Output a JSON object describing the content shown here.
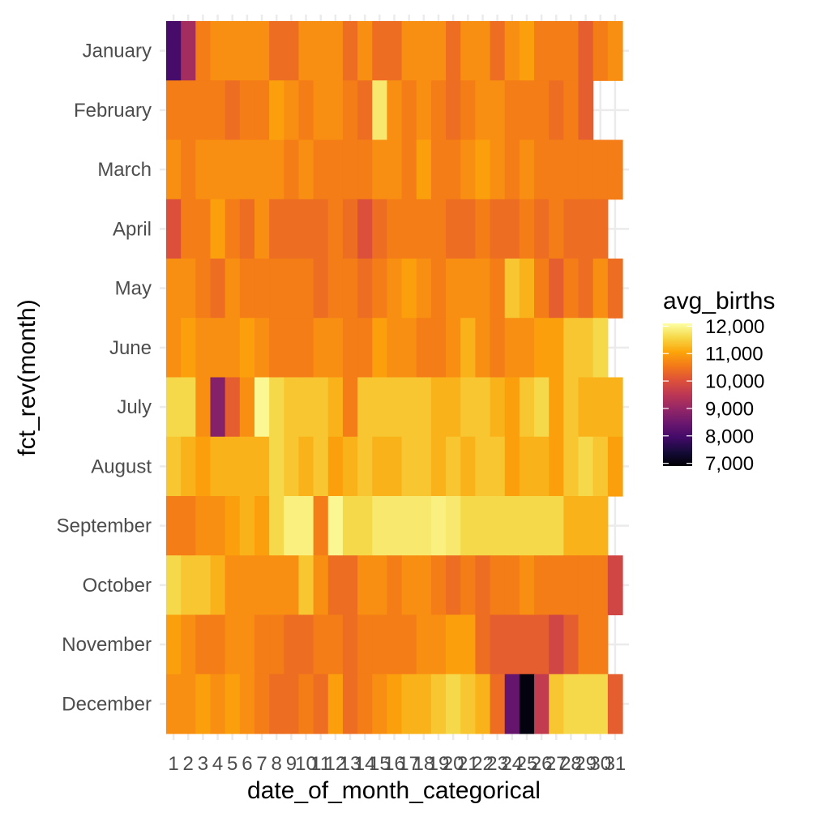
{
  "chart_data": {
    "type": "heatmap",
    "title": "",
    "xlabel": "date_of_month_categorical",
    "ylabel": "fct_rev(month)",
    "x": [
      "1",
      "2",
      "3",
      "4",
      "5",
      "6",
      "7",
      "8",
      "9",
      "10",
      "11",
      "12",
      "13",
      "14",
      "15",
      "16",
      "17",
      "18",
      "19",
      "20",
      "21",
      "22",
      "23",
      "24",
      "25",
      "26",
      "27",
      "28",
      "29",
      "30",
      "31"
    ],
    "y": [
      "January",
      "February",
      "March",
      "April",
      "May",
      "June",
      "July",
      "August",
      "September",
      "October",
      "November",
      "December"
    ],
    "values": [
      [
        8000,
        9200,
        10600,
        10800,
        10800,
        10800,
        10800,
        10400,
        10400,
        10800,
        10800,
        10800,
        10400,
        10800,
        10400,
        10400,
        10800,
        10800,
        10800,
        10400,
        10800,
        10800,
        10400,
        10800,
        11000,
        10600,
        10600,
        10600,
        10200,
        10600,
        10800
      ],
      [
        10600,
        10600,
        10600,
        10600,
        10400,
        10600,
        10600,
        11000,
        10800,
        10600,
        10800,
        10800,
        10600,
        10400,
        11800,
        10800,
        10600,
        10800,
        10600,
        10400,
        10600,
        10800,
        10800,
        10600,
        10600,
        10600,
        10400,
        10600,
        10200,
        null,
        null
      ],
      [
        10800,
        10600,
        10800,
        10800,
        10800,
        10800,
        10800,
        10800,
        10600,
        10800,
        10600,
        10600,
        10600,
        10600,
        10800,
        10800,
        10600,
        11000,
        10600,
        10600,
        10800,
        11000,
        10800,
        10600,
        10800,
        10600,
        10600,
        10600,
        10600,
        10600,
        10600
      ],
      [
        10000,
        10600,
        10600,
        11000,
        10600,
        10400,
        10800,
        10400,
        10400,
        10400,
        10400,
        10600,
        10400,
        10000,
        10400,
        10600,
        10600,
        10600,
        10600,
        10400,
        10400,
        10600,
        10400,
        10400,
        10600,
        10400,
        10600,
        10400,
        10400,
        10400,
        null
      ],
      [
        10800,
        10800,
        10600,
        10400,
        10800,
        10600,
        10600,
        10600,
        10600,
        10600,
        10400,
        10600,
        10600,
        10400,
        10600,
        10800,
        11000,
        10800,
        10600,
        10800,
        10800,
        10800,
        10600,
        11400,
        11200,
        10600,
        10200,
        10600,
        10400,
        10800,
        10400
      ],
      [
        10800,
        11000,
        10800,
        10800,
        10800,
        11000,
        10800,
        10600,
        10600,
        10600,
        10800,
        10800,
        10600,
        10600,
        11000,
        10800,
        10800,
        10600,
        10600,
        10800,
        11200,
        10800,
        10600,
        10800,
        10800,
        11000,
        11000,
        11400,
        11400,
        11600,
        null
      ],
      [
        11600,
        11600,
        10800,
        8800,
        10200,
        10800,
        12000,
        11600,
        11400,
        11400,
        11400,
        11200,
        10600,
        11400,
        11400,
        11400,
        11400,
        11400,
        11200,
        11200,
        11400,
        11400,
        11200,
        11000,
        11400,
        11600,
        11000,
        11400,
        11200,
        11200,
        11200
      ],
      [
        11400,
        11200,
        11000,
        11200,
        11200,
        11200,
        11200,
        11600,
        11400,
        11200,
        11400,
        11000,
        11200,
        11400,
        11200,
        11200,
        11400,
        11400,
        11200,
        11400,
        11200,
        11400,
        11400,
        11000,
        11200,
        11200,
        11000,
        11400,
        11600,
        11400,
        11000
      ],
      [
        10600,
        10600,
        10800,
        10800,
        11000,
        11200,
        11000,
        11600,
        11900,
        11900,
        10600,
        12000,
        11600,
        11600,
        11800,
        11800,
        11800,
        11800,
        11900,
        11800,
        11600,
        11600,
        11600,
        11600,
        11600,
        11600,
        11600,
        11200,
        11200,
        11200,
        null
      ],
      [
        11600,
        11400,
        11400,
        11200,
        10800,
        10800,
        10800,
        10800,
        10800,
        11400,
        10800,
        10400,
        10400,
        10800,
        10800,
        10600,
        10800,
        10800,
        10600,
        10400,
        10600,
        10400,
        10600,
        10600,
        10800,
        10600,
        10600,
        10600,
        10600,
        10600,
        9800
      ],
      [
        11000,
        10800,
        10600,
        10600,
        10800,
        10800,
        10600,
        10600,
        10400,
        10400,
        10600,
        10600,
        10400,
        10600,
        10600,
        10600,
        10600,
        10800,
        10800,
        11000,
        11000,
        10400,
        10200,
        10200,
        10200,
        10200,
        9800,
        10200,
        10600,
        10600,
        null
      ],
      [
        10800,
        10800,
        11000,
        10800,
        11000,
        10800,
        10600,
        10400,
        10400,
        10600,
        10400,
        11000,
        10400,
        10600,
        10800,
        11000,
        11200,
        11200,
        11400,
        11600,
        11400,
        11200,
        10400,
        8400,
        7000,
        9600,
        11400,
        11600,
        11600,
        11600,
        10200
      ]
    ],
    "value_name": "avg_births",
    "colormap": "inferno",
    "color_range": [
      6900,
      12100
    ],
    "legend": {
      "title": "avg_births",
      "position": "right",
      "breaks": [
        12000,
        11000,
        10000,
        9000,
        8000,
        7000
      ],
      "labels": [
        "12,000",
        "11,000",
        "10,000",
        "9,000",
        "8,000",
        "7,000"
      ]
    },
    "grid": true
  }
}
